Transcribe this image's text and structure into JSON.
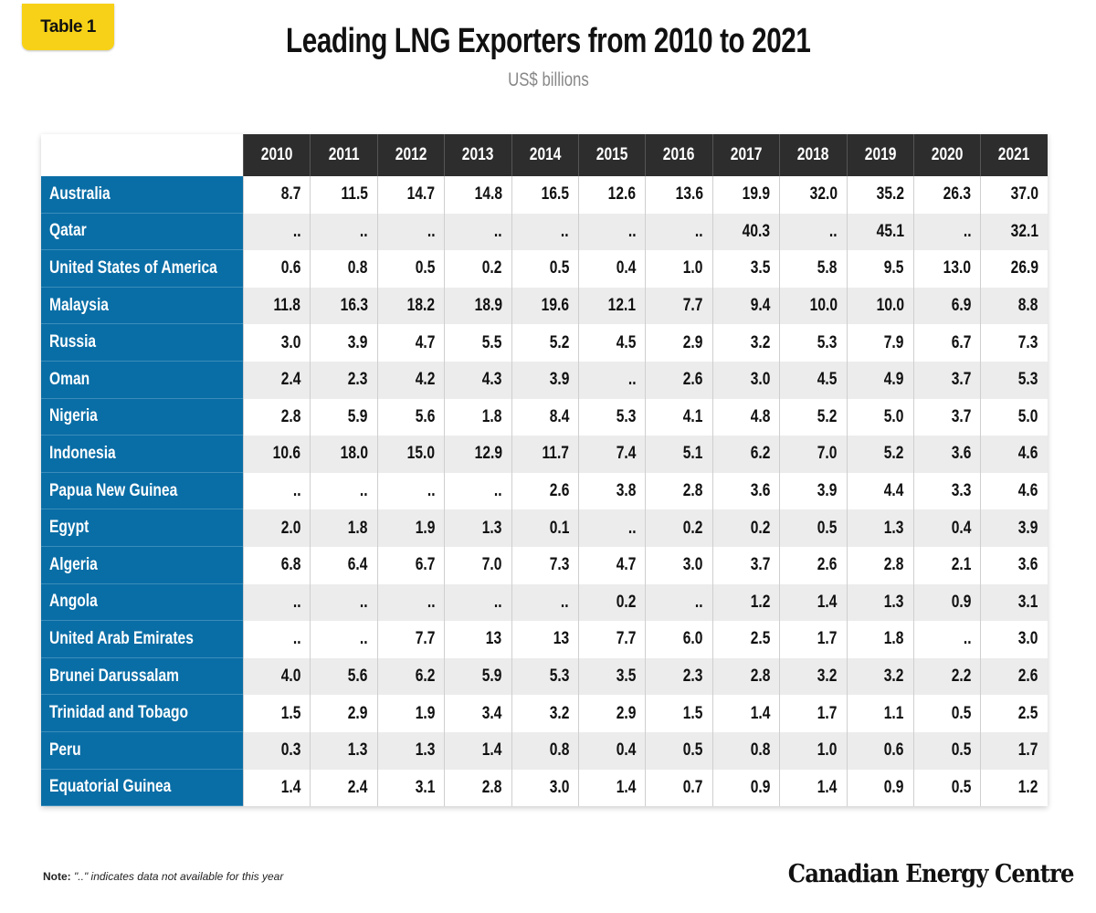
{
  "badge": "Table 1",
  "note": {
    "label": "Note:",
    "text": "\"..\" indicates data not available for this year"
  },
  "logo": "Canadian Energy Centre",
  "colors": {
    "label_column": "#0a6ea6",
    "header": "#2d2d2d",
    "badge": "#f7d117",
    "alt_row": "#ececec"
  },
  "chart_data": {
    "type": "table",
    "title": "Leading LNG Exporters from 2010 to 2021",
    "subtitle": "US$ billions",
    "columns": [
      "2010",
      "2011",
      "2012",
      "2013",
      "2014",
      "2015",
      "2016",
      "2017",
      "2018",
      "2019",
      "2020",
      "2021"
    ],
    "rows": [
      {
        "name": "Australia",
        "values": [
          "8.7",
          "11.5",
          "14.7",
          "14.8",
          "16.5",
          "12.6",
          "13.6",
          "19.9",
          "32.0",
          "35.2",
          "26.3",
          "37.0"
        ]
      },
      {
        "name": "Qatar",
        "values": [
          "..",
          "..",
          "..",
          "..",
          "..",
          "..",
          "..",
          "40.3",
          "..",
          "45.1",
          "..",
          "32.1"
        ]
      },
      {
        "name": "United States of America",
        "values": [
          "0.6",
          "0.8",
          "0.5",
          "0.2",
          "0.5",
          "0.4",
          "1.0",
          "3.5",
          "5.8",
          "9.5",
          "13.0",
          "26.9"
        ]
      },
      {
        "name": "Malaysia",
        "values": [
          "11.8",
          "16.3",
          "18.2",
          "18.9",
          "19.6",
          "12.1",
          "7.7",
          "9.4",
          "10.0",
          "10.0",
          "6.9",
          "8.8"
        ]
      },
      {
        "name": "Russia",
        "values": [
          "3.0",
          "3.9",
          "4.7",
          "5.5",
          "5.2",
          "4.5",
          "2.9",
          "3.2",
          "5.3",
          "7.9",
          "6.7",
          "7.3"
        ]
      },
      {
        "name": "Oman",
        "values": [
          "2.4",
          "2.3",
          "4.2",
          "4.3",
          "3.9",
          "..",
          "2.6",
          "3.0",
          "4.5",
          "4.9",
          "3.7",
          "5.3"
        ]
      },
      {
        "name": "Nigeria",
        "values": [
          "2.8",
          "5.9",
          "5.6",
          "1.8",
          "8.4",
          "5.3",
          "4.1",
          "4.8",
          "5.2",
          "5.0",
          "3.7",
          "5.0"
        ]
      },
      {
        "name": "Indonesia",
        "values": [
          "10.6",
          "18.0",
          "15.0",
          "12.9",
          "11.7",
          "7.4",
          "5.1",
          "6.2",
          "7.0",
          "5.2",
          "3.6",
          "4.6"
        ]
      },
      {
        "name": "Papua New Guinea",
        "values": [
          "..",
          "..",
          "..",
          "..",
          "2.6",
          "3.8",
          "2.8",
          "3.6",
          "3.9",
          "4.4",
          "3.3",
          "4.6"
        ]
      },
      {
        "name": "Egypt",
        "values": [
          "2.0",
          "1.8",
          "1.9",
          "1.3",
          "0.1",
          "..",
          "0.2",
          "0.2",
          "0.5",
          "1.3",
          "0.4",
          "3.9"
        ]
      },
      {
        "name": "Algeria",
        "values": [
          "6.8",
          "6.4",
          "6.7",
          "7.0",
          "7.3",
          "4.7",
          "3.0",
          "3.7",
          "2.6",
          "2.8",
          "2.1",
          "3.6"
        ]
      },
      {
        "name": "Angola",
        "values": [
          "..",
          "..",
          "..",
          "..",
          "..",
          "0.2",
          "..",
          "1.2",
          "1.4",
          "1.3",
          "0.9",
          "3.1"
        ]
      },
      {
        "name": "United Arab Emirates",
        "values": [
          "..",
          "..",
          "7.7",
          "13",
          "13",
          "7.7",
          "6.0",
          "2.5",
          "1.7",
          "1.8",
          "..",
          "3.0"
        ]
      },
      {
        "name": "Brunei Darussalam",
        "values": [
          "4.0",
          "5.6",
          "6.2",
          "5.9",
          "5.3",
          "3.5",
          "2.3",
          "2.8",
          "3.2",
          "3.2",
          "2.2",
          "2.6"
        ]
      },
      {
        "name": "Trinidad and Tobago",
        "values": [
          "1.5",
          "2.9",
          "1.9",
          "3.4",
          "3.2",
          "2.9",
          "1.5",
          "1.4",
          "1.7",
          "1.1",
          "0.5",
          "2.5"
        ]
      },
      {
        "name": "Peru",
        "values": [
          "0.3",
          "1.3",
          "1.3",
          "1.4",
          "0.8",
          "0.4",
          "0.5",
          "0.8",
          "1.0",
          "0.6",
          "0.5",
          "1.7"
        ]
      },
      {
        "name": "Equatorial Guinea",
        "values": [
          "1.4",
          "2.4",
          "3.1",
          "2.8",
          "3.0",
          "1.4",
          "0.7",
          "0.9",
          "1.4",
          "0.9",
          "0.5",
          "1.2"
        ]
      }
    ]
  }
}
